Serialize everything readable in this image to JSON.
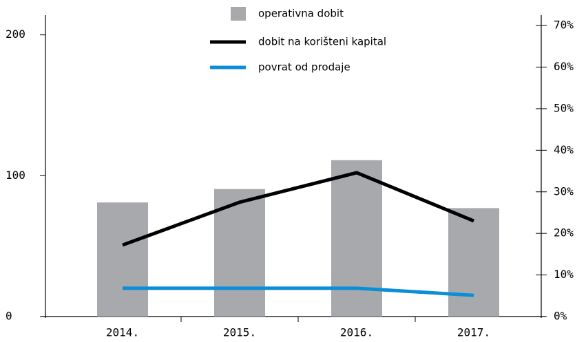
{
  "chart_data": {
    "type": "bar_line",
    "categories": [
      "2014.",
      "2015.",
      "2016.",
      "2017."
    ],
    "series": [
      {
        "name": "operativna dobit",
        "type": "bar",
        "color": "#a7a9ac",
        "values": [
          81,
          90.5,
          111,
          77
        ]
      },
      {
        "name": "dobit na korišteni kapital",
        "type": "line",
        "axis": "y2",
        "color": "#000000",
        "values": [
          17.2,
          27.5,
          34.6,
          23
        ]
      },
      {
        "name": "povrat od prodaje",
        "type": "line",
        "axis": "y2",
        "color": "#0a8fd6",
        "values": [
          6.8,
          6.8,
          6.8,
          5.1
        ]
      }
    ],
    "ylim": [
      0,
      214
    ],
    "yticks": [
      0,
      100,
      200
    ],
    "y2lim": [
      0,
      72.5
    ],
    "y2ticks": [
      {
        "value": 0,
        "label": "0%"
      },
      {
        "value": 10,
        "label": "10%"
      },
      {
        "value": 20,
        "label": "20%"
      },
      {
        "value": 30,
        "label": "30%"
      },
      {
        "value": 40,
        "label": "40%"
      },
      {
        "value": 50,
        "label": "50%"
      },
      {
        "value": 60,
        "label": "60%"
      },
      {
        "value": 70,
        "label": "70%"
      }
    ],
    "legend": "top"
  }
}
